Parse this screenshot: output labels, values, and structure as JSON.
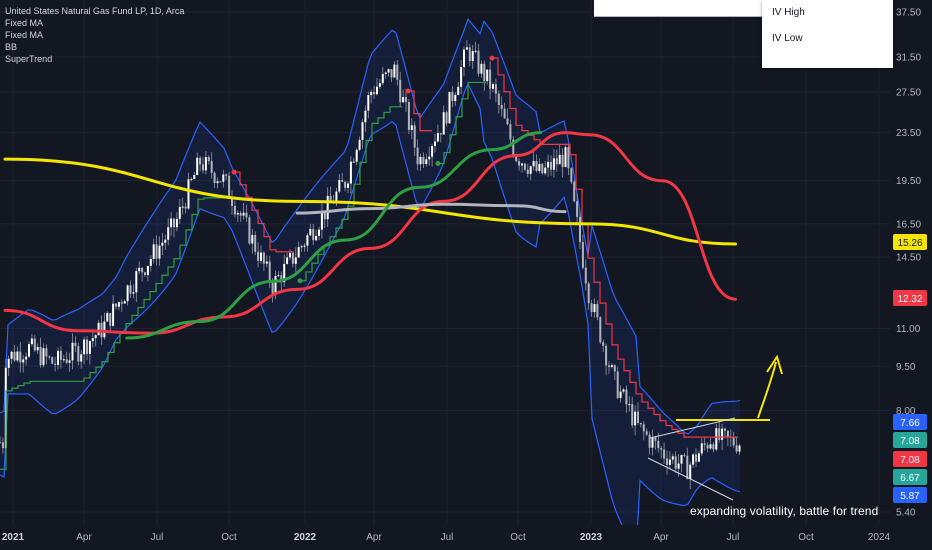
{
  "legend": {
    "title": "United States Natural Gas Fund LP, 1D, Arca",
    "items": [
      "Fixed MA",
      "Fixed MA",
      "BB",
      "SuperTrend"
    ]
  },
  "dropdown": {
    "items": [
      "IV High",
      "IV Low"
    ]
  },
  "annotation": {
    "text": "expanding volatility, battle for trend"
  },
  "chart_data": {
    "type": "line",
    "title": "United States Natural Gas Fund LP, 1D, Arca",
    "y_axis": {
      "ticks": [
        37.5,
        31.5,
        27.5,
        23.5,
        19.5,
        16.5,
        14.5,
        11.0,
        9.5,
        8.0,
        5.4
      ],
      "tick_labels": [
        "37.50",
        "31.50",
        "27.50",
        "23.50",
        "19.50",
        "16.50",
        "14.50",
        "11.00",
        "9.50",
        "8.00",
        "5.40"
      ],
      "scale": "log"
    },
    "x_axis": {
      "tick_labels": [
        "2021",
        "Apr",
        "Jul",
        "Oct",
        "2022",
        "Apr",
        "Jul",
        "Oct",
        "2023",
        "Apr",
        "Jul",
        "Oct",
        "2024"
      ],
      "bold": [
        "2021",
        "2022",
        "2023"
      ]
    },
    "price_labels": [
      {
        "value": "15.26",
        "color": "#f5e600",
        "text_color": "#131722"
      },
      {
        "value": "12.32",
        "color": "#f23645",
        "text_color": "#ffffff"
      },
      {
        "value": "7.66",
        "color": "#2962ff",
        "text_color": "#ffffff"
      },
      {
        "value": "7.08",
        "color": "#26a69a",
        "text_color": "#ffffff"
      },
      {
        "value": "7.08",
        "color": "#f23645",
        "text_color": "#ffffff"
      },
      {
        "value": "6.67",
        "color": "#26a69a",
        "text_color": "#ffffff"
      },
      {
        "value": "5.87",
        "color": "#2962ff",
        "text_color": "#ffffff"
      }
    ],
    "series": [
      {
        "name": "Price",
        "color": "#d1d4dc",
        "x": [
          "2021-01",
          "2021-02",
          "2021-03",
          "2021-04",
          "2021-05",
          "2021-06",
          "2021-07",
          "2021-08",
          "2021-09",
          "2021-10",
          "2021-11",
          "2021-12",
          "2022-01",
          "2022-02",
          "2022-03",
          "2022-04",
          "2022-05",
          "2022-06",
          "2022-07",
          "2022-08",
          "2022-09",
          "2022-10",
          "2022-11",
          "2022-12",
          "2023-01",
          "2023-02",
          "2023-03",
          "2023-04",
          "2023-05",
          "2023-06",
          "2023-07"
        ],
        "y": [
          9.8,
          10.2,
          9.6,
          10.1,
          11.0,
          12.8,
          14.5,
          16.5,
          21.0,
          19.5,
          16.0,
          13.0,
          14.8,
          17.0,
          19.5,
          27.5,
          30.0,
          21.0,
          24.5,
          32.5,
          28.0,
          21.5,
          20.0,
          21.5,
          12.5,
          9.0,
          7.5,
          6.8,
          6.4,
          7.2,
          7.08
        ]
      },
      {
        "name": "Fixed MA",
        "color": "#f5e600",
        "x": [
          "2021-01",
          "2022-01",
          "2023-01",
          "2023-07"
        ],
        "y": [
          21.2,
          18.0,
          16.5,
          15.26
        ]
      },
      {
        "name": "Fixed MA",
        "color": "#f23645",
        "x": [
          "2021-01",
          "2021-04",
          "2021-07",
          "2021-10",
          "2022-01",
          "2022-04",
          "2022-07",
          "2022-10",
          "2022-12",
          "2023-01",
          "2023-04",
          "2023-07"
        ],
        "y": [
          11.8,
          10.9,
          10.8,
          11.5,
          12.8,
          15.0,
          18.0,
          21.5,
          23.5,
          23.3,
          19.5,
          12.32
        ]
      },
      {
        "name": "Fixed MA",
        "color": "#b2b5be",
        "x": [
          "2022-01",
          "2022-04",
          "2022-07",
          "2022-10",
          "2022-12"
        ],
        "y": [
          17.2,
          17.5,
          17.8,
          17.7,
          17.3
        ]
      },
      {
        "name": "Fixed MA",
        "color": "#2ea043",
        "x": [
          "2021-06",
          "2021-09",
          "2021-12",
          "2022-03",
          "2022-06",
          "2022-09",
          "2022-11"
        ],
        "y": [
          10.6,
          11.3,
          13.2,
          15.5,
          19.0,
          22.0,
          23.5
        ]
      }
    ]
  }
}
